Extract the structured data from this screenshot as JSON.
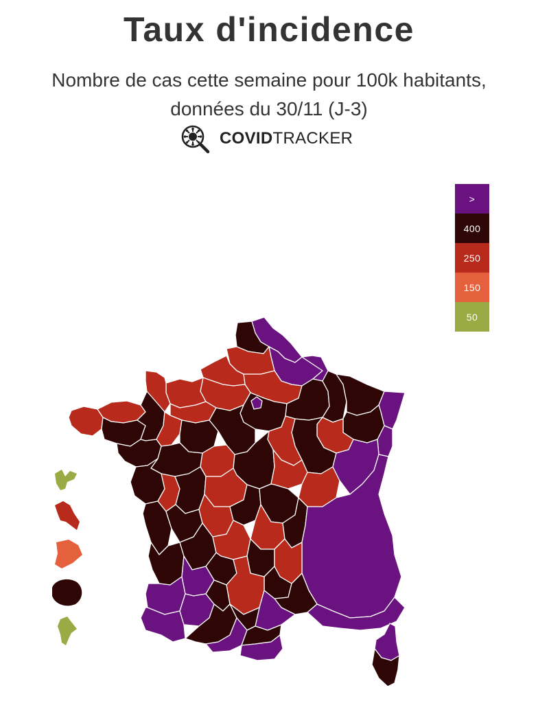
{
  "header": {
    "title": "Taux d'incidence",
    "subtitle_line1": "Nombre de cas cette semaine pour 100k habitants,",
    "subtitle_line2": "données du 30/11 (J-3)",
    "brand_bold": "COVID",
    "brand_light": "TRACKER",
    "brand_icon": "virus-magnifier-icon"
  },
  "legend": [
    {
      "label": ">",
      "color": "#6a1280"
    },
    {
      "label": "400",
      "color": "#2e0606"
    },
    {
      "label": "250",
      "color": "#b72a1c"
    },
    {
      "label": "150",
      "color": "#e5613d"
    },
    {
      "label": "50",
      "color": "#9aaa44"
    }
  ],
  "colors": {
    "gt400": "#6a1280",
    "c400": "#2e0606",
    "c250": "#b72a1c",
    "c150": "#e5613d",
    "c50": "#9aaa44",
    "border": "#ffffff"
  },
  "map": {
    "regions": [
      {
        "name": "nord",
        "cls": "gt400"
      },
      {
        "name": "pas-de-calais",
        "cls": "c400"
      },
      {
        "name": "aisne",
        "cls": "gt400"
      },
      {
        "name": "somme",
        "cls": "c250"
      },
      {
        "name": "oise",
        "cls": "c250"
      },
      {
        "name": "seine-maritime",
        "cls": "c250"
      },
      {
        "name": "eure",
        "cls": "c250"
      },
      {
        "name": "calvados",
        "cls": "c250"
      },
      {
        "name": "manche",
        "cls": "c250"
      },
      {
        "name": "paris",
        "cls": "gt400"
      },
      {
        "name": "ile-de-france",
        "cls": "c400"
      },
      {
        "name": "ardennes",
        "cls": "gt400"
      },
      {
        "name": "marne",
        "cls": "c400"
      },
      {
        "name": "meuse",
        "cls": "c400"
      },
      {
        "name": "moselle",
        "cls": "c400"
      },
      {
        "name": "bas-rhin",
        "cls": "gt400"
      },
      {
        "name": "haut-rhin",
        "cls": "gt400"
      },
      {
        "name": "vosges",
        "cls": "c400"
      },
      {
        "name": "haute-marne",
        "cls": "c250"
      },
      {
        "name": "cote-d-or",
        "cls": "c400"
      },
      {
        "name": "yonne",
        "cls": "c250"
      },
      {
        "name": "finistere",
        "cls": "c250"
      },
      {
        "name": "cotes-d-armor",
        "cls": "c250"
      },
      {
        "name": "morbihan",
        "cls": "c400"
      },
      {
        "name": "ille-et-vilaine",
        "cls": "c400"
      },
      {
        "name": "orne",
        "cls": "c250"
      },
      {
        "name": "mayenne",
        "cls": "c250"
      },
      {
        "name": "sarthe",
        "cls": "c400"
      },
      {
        "name": "loire-atlantique",
        "cls": "c400"
      },
      {
        "name": "maine-et-loire",
        "cls": "c400"
      },
      {
        "name": "indre-et-loire",
        "cls": "c250"
      },
      {
        "name": "loiret",
        "cls": "c400"
      },
      {
        "name": "cher",
        "cls": "c400"
      },
      {
        "name": "nievre",
        "cls": "c250"
      },
      {
        "name": "vendee",
        "cls": "c400"
      },
      {
        "name": "deux-sevres",
        "cls": "c250"
      },
      {
        "name": "vienne",
        "cls": "c400"
      },
      {
        "name": "indre",
        "cls": "c250"
      },
      {
        "name": "saone-et-loire",
        "cls": "c250"
      },
      {
        "name": "jura-doubs",
        "cls": "gt400"
      },
      {
        "name": "charente-maritime",
        "cls": "c400"
      },
      {
        "name": "charente",
        "cls": "c400"
      },
      {
        "name": "haute-vienne",
        "cls": "c250"
      },
      {
        "name": "creuse",
        "cls": "c400"
      },
      {
        "name": "allier",
        "cls": "c400"
      },
      {
        "name": "puy-de-dome",
        "cls": "c250"
      },
      {
        "name": "loire",
        "cls": "c400"
      },
      {
        "name": "rhone-alpes",
        "cls": "gt400"
      },
      {
        "name": "gironde",
        "cls": "c400"
      },
      {
        "name": "dordogne",
        "cls": "c400"
      },
      {
        "name": "correze",
        "cls": "c250"
      },
      {
        "name": "cantal",
        "cls": "c400"
      },
      {
        "name": "haute-loire",
        "cls": "c250"
      },
      {
        "name": "lozere",
        "cls": "c400"
      },
      {
        "name": "landes",
        "cls": "gt400"
      },
      {
        "name": "lot-et-garonne",
        "cls": "gt400"
      },
      {
        "name": "lot",
        "cls": "c400"
      },
      {
        "name": "aveyron",
        "cls": "c250"
      },
      {
        "name": "gard",
        "cls": "c400"
      },
      {
        "name": "herault",
        "cls": "gt400"
      },
      {
        "name": "paca",
        "cls": "gt400"
      },
      {
        "name": "pyrenees-atlantiques",
        "cls": "gt400"
      },
      {
        "name": "gers",
        "cls": "gt400"
      },
      {
        "name": "tarn-et-garonne",
        "cls": "c400"
      },
      {
        "name": "haute-garonne",
        "cls": "c400"
      },
      {
        "name": "tarn",
        "cls": "c400"
      },
      {
        "name": "ariege",
        "cls": "gt400"
      },
      {
        "name": "aude",
        "cls": "c400"
      },
      {
        "name": "pyrenees-orientales",
        "cls": "gt400"
      },
      {
        "name": "haute-corse",
        "cls": "gt400"
      },
      {
        "name": "corse-du-sud",
        "cls": "c400"
      }
    ],
    "overseas": [
      {
        "name": "guadeloupe",
        "cls": "c50"
      },
      {
        "name": "martinique",
        "cls": "c250"
      },
      {
        "name": "guyane",
        "cls": "c150"
      },
      {
        "name": "reunion",
        "cls": "c400"
      },
      {
        "name": "mayotte",
        "cls": "c50"
      }
    ]
  }
}
